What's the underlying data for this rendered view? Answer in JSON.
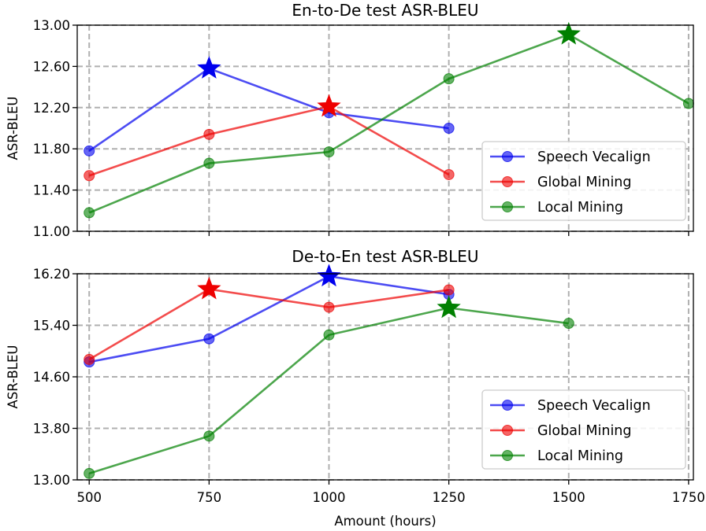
{
  "chart_data": [
    {
      "type": "line",
      "title": "En-to-De test ASR-BLEU",
      "xlabel": "",
      "ylabel": "ASR-BLEU",
      "xlim": [
        475,
        1760
      ],
      "ylim": [
        11.0,
        13.0
      ],
      "xticks": [
        500,
        750,
        1000,
        1250,
        1500,
        1750
      ],
      "yticks": [
        11.0,
        11.4,
        11.8,
        12.2,
        12.6,
        13.0
      ],
      "ytick_labels": [
        "11.00",
        "11.40",
        "11.80",
        "12.20",
        "12.60",
        "13.00"
      ],
      "grid": true,
      "legend_position": "lower-right",
      "series": [
        {
          "name": "Speech Vecalign",
          "color": "#0000ee",
          "x": [
            500,
            750,
            1000,
            1250
          ],
          "y": [
            11.78,
            12.58,
            12.15,
            12.0
          ],
          "best_index": 1
        },
        {
          "name": "Global Mining",
          "color": "#ee0000",
          "x": [
            500,
            750,
            1000,
            1250
          ],
          "y": [
            11.54,
            11.94,
            12.21,
            11.55
          ],
          "best_index": 2
        },
        {
          "name": "Local Mining",
          "color": "#008000",
          "x": [
            500,
            750,
            1000,
            1250,
            1500,
            1750
          ],
          "y": [
            11.18,
            11.66,
            11.77,
            12.48,
            12.91,
            12.24
          ],
          "best_index": 4
        }
      ]
    },
    {
      "type": "line",
      "title": "De-to-En test ASR-BLEU",
      "xlabel": "Amount (hours)",
      "ylabel": "ASR-BLEU",
      "xlim": [
        475,
        1760
      ],
      "ylim": [
        13.0,
        16.2
      ],
      "xticks": [
        500,
        750,
        1000,
        1250,
        1500,
        1750
      ],
      "yticks": [
        13.0,
        13.8,
        14.6,
        15.4,
        16.2
      ],
      "ytick_labels": [
        "13.00",
        "13.80",
        "14.60",
        "15.40",
        "16.20"
      ],
      "grid": true,
      "legend_position": "lower-right",
      "series": [
        {
          "name": "Speech Vecalign",
          "color": "#0000ee",
          "x": [
            500,
            750,
            1000,
            1250
          ],
          "y": [
            14.83,
            15.19,
            16.16,
            15.88
          ],
          "best_index": 2
        },
        {
          "name": "Global Mining",
          "color": "#ee0000",
          "x": [
            500,
            750,
            1000,
            1250
          ],
          "y": [
            14.87,
            15.96,
            15.68,
            15.95
          ],
          "best_index": 1
        },
        {
          "name": "Local Mining",
          "color": "#008000",
          "x": [
            500,
            750,
            1000,
            1250,
            1500
          ],
          "y": [
            13.1,
            13.68,
            15.25,
            15.67,
            15.43
          ],
          "best_index": 3
        }
      ]
    }
  ]
}
